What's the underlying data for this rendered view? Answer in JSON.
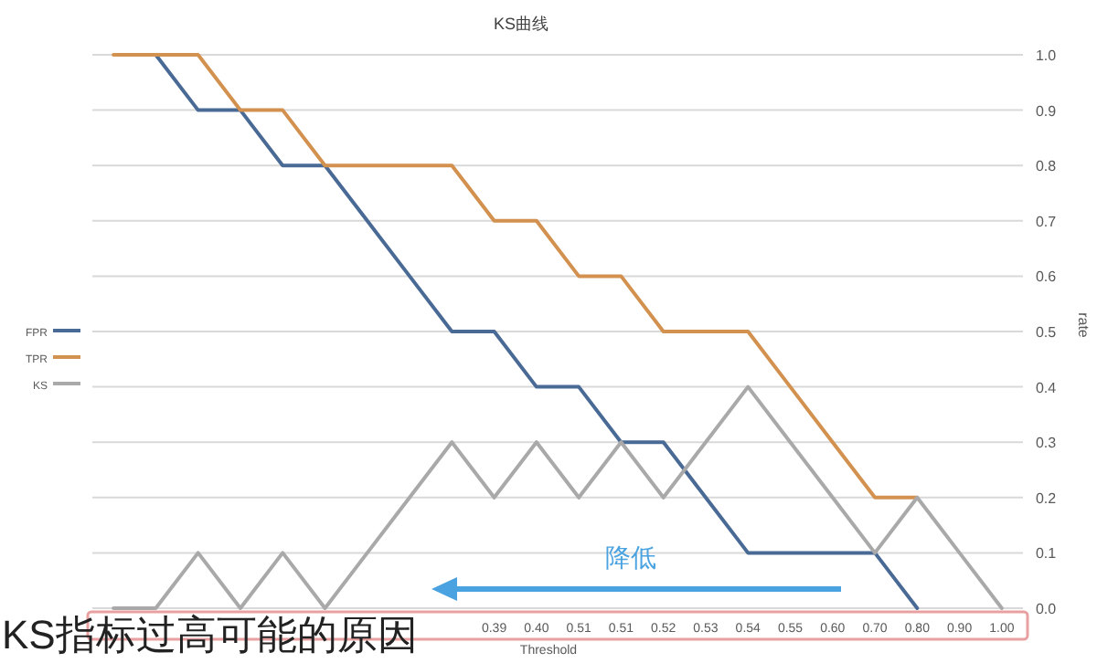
{
  "chart_data": {
    "type": "line",
    "title": "KS曲线",
    "xlabel": "Threshold",
    "ylabel": "rate",
    "categories": [
      null,
      null,
      null,
      null,
      null,
      null,
      null,
      null,
      null,
      "0.39",
      "0.40",
      "0.51",
      "0.51",
      "0.52",
      "0.53",
      "0.54",
      "0.55",
      "0.60",
      "0.70",
      "0.80",
      "0.90",
      "1.00"
    ],
    "series": [
      {
        "name": "FPR",
        "color": "#4a6a96",
        "values": [
          null,
          1.0,
          0.9,
          0.9,
          0.8,
          0.8,
          0.7,
          0.6,
          0.5,
          0.5,
          0.4,
          0.4,
          0.3,
          0.3,
          0.2,
          0.1,
          0.1,
          0.1,
          0.1,
          0.0,
          null,
          null
        ]
      },
      {
        "name": "TPR",
        "color": "#d3914f",
        "values": [
          1.0,
          1.0,
          1.0,
          0.9,
          0.9,
          0.8,
          0.8,
          0.8,
          0.8,
          0.7,
          0.7,
          0.6,
          0.6,
          0.5,
          0.5,
          0.5,
          0.4,
          0.3,
          0.2,
          0.2,
          null,
          null
        ]
      },
      {
        "name": "KS",
        "color": "#a9a9a9",
        "values": [
          0.0,
          0.0,
          0.1,
          0.0,
          0.1,
          0.0,
          0.1,
          0.2,
          0.3,
          0.2,
          0.3,
          0.2,
          0.3,
          0.2,
          0.3,
          0.4,
          0.3,
          0.2,
          0.1,
          0.2,
          0.1,
          0.0
        ]
      }
    ],
    "ylim": [
      0,
      1
    ],
    "yticks": [
      {
        "value": 0,
        "label": "0.0"
      },
      0.1,
      0.2,
      0.3,
      0.4,
      0.5,
      0.6,
      0.7,
      0.8,
      0.9,
      {
        "value": 1,
        "label": "1.0"
      }
    ],
    "grid": "y",
    "legend": "left",
    "marker": "none",
    "line_style": "solid",
    "annotations": [
      "降低",
      "KS指标过高可能的原因"
    ]
  }
}
